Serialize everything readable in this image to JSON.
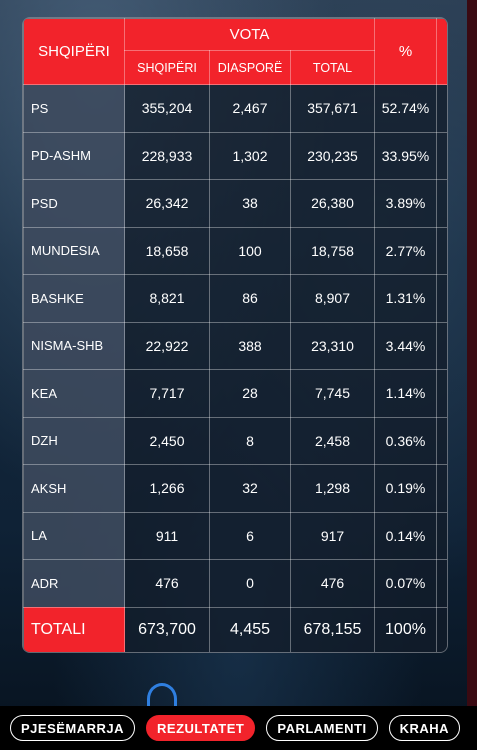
{
  "table": {
    "header_party": "SHQIPËRI",
    "header_votes": "VOTA",
    "header_pct": "%",
    "sub_headers": [
      "SHQIPËRI",
      "DIASPORË",
      "TOTAL"
    ],
    "rows": [
      {
        "party": "PS",
        "albania": "355,204",
        "diaspora": "2,467",
        "total": "357,671",
        "pct": "52.74%"
      },
      {
        "party": "PD-ASHM",
        "albania": "228,933",
        "diaspora": "1,302",
        "total": "230,235",
        "pct": "33.95%"
      },
      {
        "party": "PSD",
        "albania": "26,342",
        "diaspora": "38",
        "total": "26,380",
        "pct": "3.89%"
      },
      {
        "party": "MUNDESIA",
        "albania": "18,658",
        "diaspora": "100",
        "total": "18,758",
        "pct": "2.77%"
      },
      {
        "party": "BASHKE",
        "albania": "8,821",
        "diaspora": "86",
        "total": "8,907",
        "pct": "1.31%"
      },
      {
        "party": "NISMA-SHB",
        "albania": "22,922",
        "diaspora": "388",
        "total": "23,310",
        "pct": "3.44%"
      },
      {
        "party": "KEA",
        "albania": "7,717",
        "diaspora": "28",
        "total": "7,745",
        "pct": "1.14%"
      },
      {
        "party": "DZH",
        "albania": "2,450",
        "diaspora": "8",
        "total": "2,458",
        "pct": "0.36%"
      },
      {
        "party": "AKSH",
        "albania": "1,266",
        "diaspora": "32",
        "total": "1,298",
        "pct": "0.19%"
      },
      {
        "party": "LA",
        "albania": "911",
        "diaspora": "6",
        "total": "917",
        "pct": "0.14%"
      },
      {
        "party": "ADR",
        "albania": "476",
        "diaspora": "0",
        "total": "476",
        "pct": "0.07%"
      }
    ],
    "total": {
      "party": "TOTALI",
      "albania": "673,700",
      "diaspora": "4,455",
      "total": "678,155",
      "pct": "100%"
    }
  },
  "nav": {
    "items": [
      "PJESËMARRJA",
      "REZULTATET",
      "PARLAMENTI",
      "KRAHA"
    ],
    "active": "REZULTATET"
  },
  "colors": {
    "accent_red": "#f2232b",
    "party_cell": "#46556a",
    "nav_bg": "#000000"
  }
}
